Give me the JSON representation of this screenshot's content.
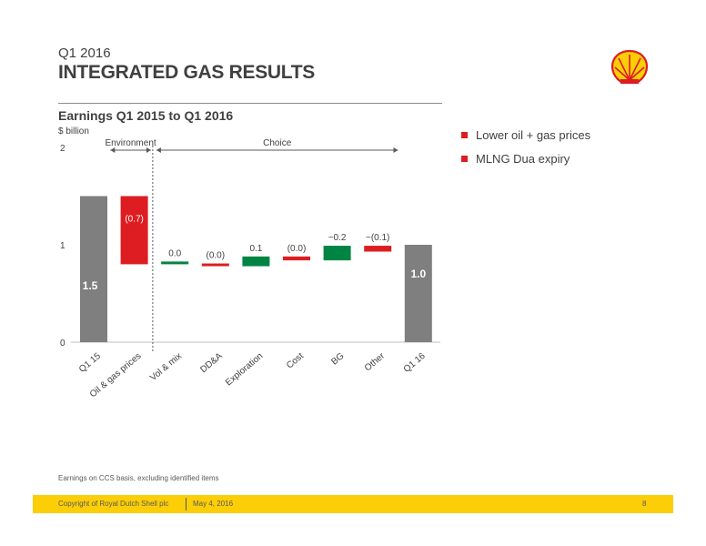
{
  "header": {
    "subtitle": "Q1 2016",
    "title": "INTEGRATED GAS RESULTS"
  },
  "logo": {
    "icon": "shell-pecten-logo",
    "colors": {
      "shell_yellow": "#fbce07",
      "shell_red": "#dd1d21"
    }
  },
  "chart_data": {
    "type": "waterfall",
    "title": "Earnings Q1 2015 to Q1 2016",
    "unit_label": "$ billion",
    "ylim": [
      0,
      2
    ],
    "yticks": [
      0,
      1,
      2
    ],
    "grid": false,
    "categories": [
      "Q1 15",
      "Oil & gas prices",
      "Vol & mix",
      "DD&A",
      "Exploration",
      "Cost",
      "BG",
      "Other",
      "Q1 16"
    ],
    "steps": [
      {
        "category": "Q1 15",
        "kind": "total",
        "value": 1.5,
        "label": "1.5",
        "color": "#7f7f7f"
      },
      {
        "category": "Oil & gas prices",
        "kind": "delta",
        "value": -0.7,
        "label": "(0.7)",
        "color": "#dd1d21"
      },
      {
        "category": "Vol & mix",
        "kind": "delta",
        "value": 0.0,
        "label": "0.0",
        "color": "#008443"
      },
      {
        "category": "DD&A",
        "kind": "delta",
        "value": -0.02,
        "label": "(0.0)",
        "color": "#dd1d21"
      },
      {
        "category": "Exploration",
        "kind": "delta",
        "value": 0.1,
        "label": "0.1",
        "color": "#008443"
      },
      {
        "category": "Cost",
        "kind": "delta",
        "value": -0.04,
        "label": "(0.0)",
        "color": "#dd1d21"
      },
      {
        "category": "BG",
        "kind": "delta",
        "value": 0.15,
        "label": "~0.2",
        "color": "#008443"
      },
      {
        "category": "Other",
        "kind": "delta",
        "value": -0.06,
        "label": "~(0.1)",
        "color": "#dd1d21"
      },
      {
        "category": "Q1 16",
        "kind": "total",
        "value": 1.0,
        "label": "1.0",
        "color": "#7f7f7f"
      }
    ],
    "brackets": [
      {
        "label": "Environment",
        "from_index": 0.5,
        "to_index": 1.5
      },
      {
        "label": "Choice",
        "from_index": 1.5,
        "to_index": 7.5
      }
    ],
    "divider_after_index": 1
  },
  "legend": [
    {
      "label": "Lower oil + gas prices",
      "color": "#dd1d21"
    },
    {
      "label": "MLNG Dua expiry",
      "color": "#dd1d21"
    }
  ],
  "footnote": "Earnings on CCS basis, excluding identified items",
  "footer": {
    "copyright": "Copyright of Royal Dutch Shell plc",
    "date": "May 4, 2016",
    "page": "8"
  }
}
